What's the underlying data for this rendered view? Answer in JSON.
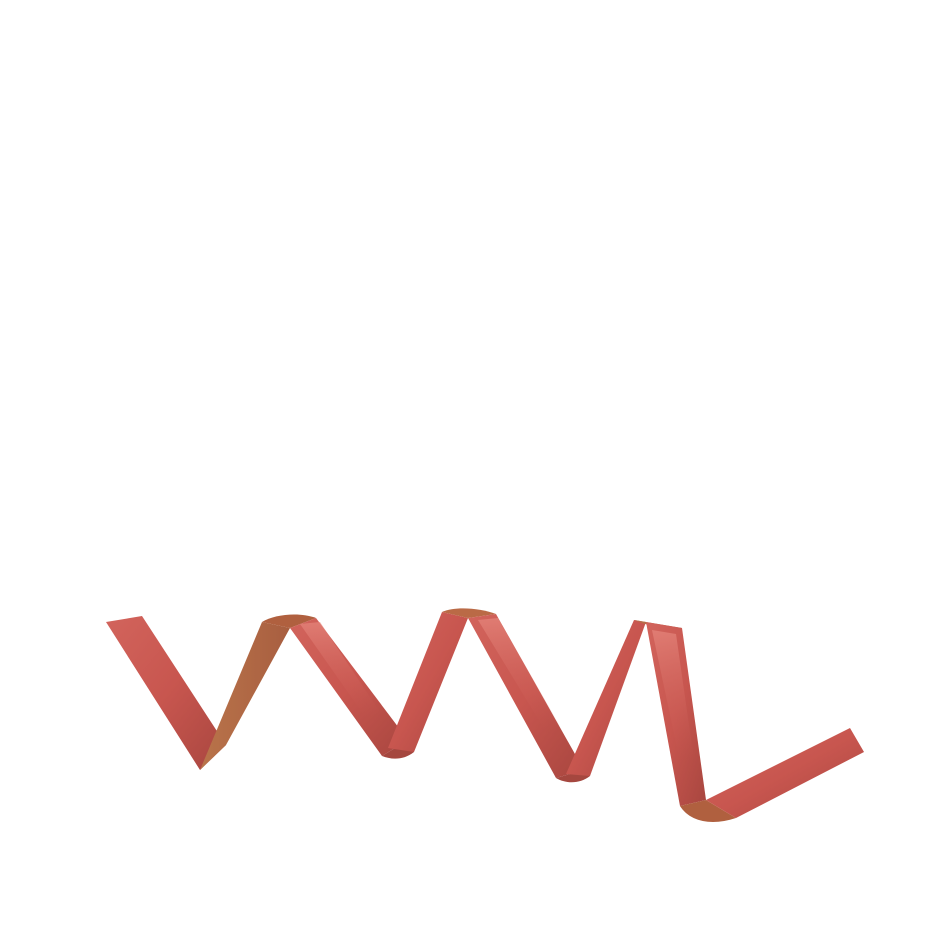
{
  "image": {
    "subject": "curling-ribbon",
    "background_color": "#ffffff",
    "ribbon_colors": {
      "front": "#c8564f",
      "back": "#b86a45",
      "highlight": "#e07a72",
      "shadow": "#9c3f38"
    }
  }
}
